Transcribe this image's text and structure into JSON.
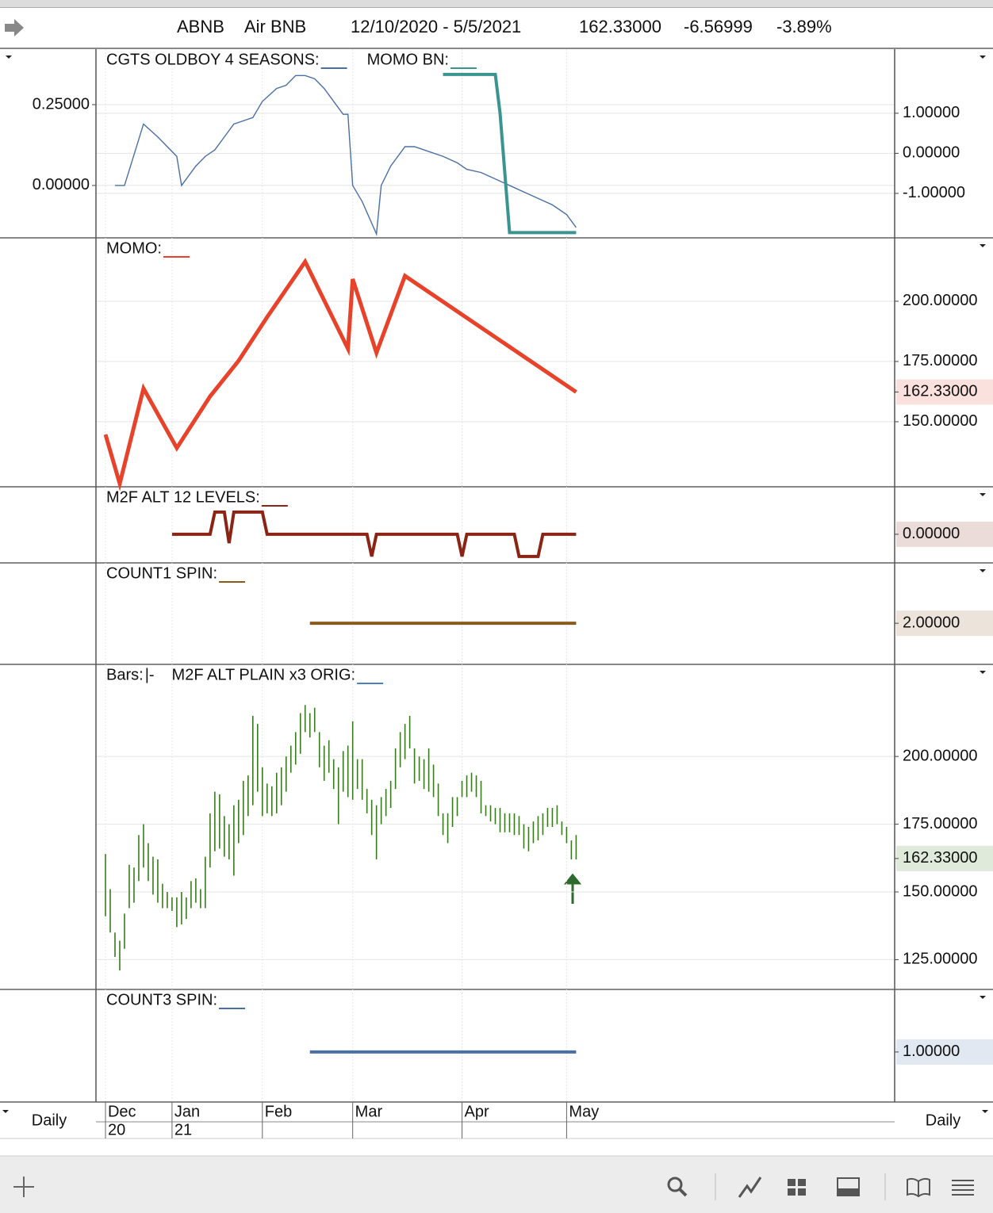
{
  "header": {
    "symbol": "ABNB",
    "name": "Air BNB",
    "range": "12/10/2020 - 5/5/2021",
    "last": "162.33000",
    "change": "-6.56999",
    "change_pct": "-3.89%"
  },
  "footer": {
    "period_left": "Daily",
    "period_right": "Daily"
  },
  "x_axis": {
    "xlim": [
      -2,
      166
    ],
    "xticks": [
      {
        "value": 0,
        "label": "Dec",
        "year": "20"
      },
      {
        "value": 14,
        "label": "Jan",
        "year": "21"
      },
      {
        "value": 33,
        "label": "Feb"
      },
      {
        "value": 52,
        "label": "Mar"
      },
      {
        "value": 75,
        "label": "Apr"
      },
      {
        "value": 97,
        "label": "May"
      }
    ]
  },
  "chart_data": [
    {
      "type": "line",
      "grid": true,
      "ylim": [
        -0.162,
        0.4216
      ],
      "yticks": [
        {
          "value": 0.25,
          "label": "0.25000"
        },
        {
          "value": 0,
          "label": "0.00000"
        }
      ],
      "y2lim": [
        -2.11,
        2.6
      ],
      "y2ticks": [
        {
          "value": 1,
          "label": "1.00000"
        },
        {
          "value": 0,
          "label": "0.00000"
        },
        {
          "value": -1,
          "label": "-1.00000"
        }
      ],
      "series": [
        {
          "name": "CGTS OLDBOY 4 SEASONS:",
          "color": "#4a6fa5",
          "line_width": 1.4,
          "x": [
            2,
            4,
            8,
            11,
            15,
            16,
            19,
            21,
            23,
            25,
            27,
            29,
            31,
            33,
            36,
            38,
            40,
            42,
            44,
            46,
            48,
            50,
            51,
            52,
            54,
            57,
            58,
            60,
            63,
            65,
            67,
            71,
            74,
            76,
            79,
            82,
            85,
            88,
            91,
            94,
            97,
            99
          ],
          "values": [
            0,
            0,
            0.19,
            0.15,
            0.09,
            0,
            0.06,
            0.09,
            0.11,
            0.15,
            0.19,
            0.2,
            0.21,
            0.26,
            0.3,
            0.31,
            0.34,
            0.34,
            0.33,
            0.3,
            0.26,
            0.22,
            0.22,
            0,
            -0.05,
            -0.15,
            0,
            0.06,
            0.12,
            0.12,
            0.11,
            0.09,
            0.07,
            0.05,
            0.04,
            0.02,
            0,
            -0.02,
            -0.04,
            -0.06,
            -0.09,
            -0.13
          ]
        },
        {
          "name": "MOMO BN:",
          "color": "#3a9490",
          "line_width": 4,
          "axis": "y2",
          "x": [
            71,
            82,
            83,
            85,
            99
          ],
          "values": [
            1.97,
            1.97,
            1.0,
            -1.98,
            -1.98
          ]
        }
      ]
    },
    {
      "type": "line",
      "grid": true,
      "ylim": [
        123,
        226.3
      ],
      "yticks": [
        {
          "value": 200,
          "label": "200.00000"
        },
        {
          "value": 175,
          "label": "175.00000"
        },
        {
          "value": 150,
          "label": "150.00000"
        }
      ],
      "last_value": {
        "value": 162.33,
        "label": "162.33000"
      },
      "series": [
        {
          "name": "MOMO:",
          "color": "#e8432a",
          "line_width": 5,
          "x": [
            0,
            3,
            8,
            15,
            22,
            28,
            34,
            42,
            51,
            52,
            57,
            63,
            99
          ],
          "values": [
            144.7,
            124.3,
            163.8,
            139.1,
            160.5,
            175.3,
            193.4,
            216.4,
            180.3,
            209.2,
            178.6,
            210.5,
            162.33
          ]
        }
      ]
    },
    {
      "type": "line",
      "grid": true,
      "ylim": [
        -1.29,
        2.14
      ],
      "last_value": {
        "value": 0,
        "label": "0.00000"
      },
      "series": [
        {
          "name": "M2F ALT 12 LEVELS:",
          "color": "#8b2414",
          "line_width": 4,
          "x": [
            14,
            22,
            23,
            25,
            26,
            27,
            33,
            34,
            55,
            56,
            57,
            74,
            75,
            76,
            86,
            87,
            91,
            92,
            99
          ],
          "values": [
            0,
            0,
            1,
            1,
            -0.4,
            1,
            1,
            0,
            0,
            -1,
            0,
            0,
            -1,
            0,
            0,
            -1,
            -1,
            0,
            0
          ]
        }
      ]
    },
    {
      "type": "line",
      "grid": true,
      "ylim": [
        1.19,
        3.19
      ],
      "last_value": {
        "value": 2,
        "label": "2.00000"
      },
      "series": [
        {
          "name": "COUNT1 SPIN:",
          "color": "#8a5a1c",
          "line_width": 4,
          "x": [
            43,
            99
          ],
          "values": [
            2,
            2
          ]
        }
      ]
    },
    {
      "type": "ohlc",
      "grid": true,
      "ylim": [
        114,
        234
      ],
      "yticks": [
        {
          "value": 200,
          "label": "200.00000"
        },
        {
          "value": 175,
          "label": "175.00000"
        },
        {
          "value": 150,
          "label": "150.00000"
        },
        {
          "value": 125,
          "label": "125.00000"
        }
      ],
      "last_value": {
        "value": 162.33,
        "label": "162.33000"
      },
      "series": [
        {
          "name": "Bars:",
          "symbol": "|-",
          "color": "#3a7a1f",
          "high": [
            164,
            151,
            135,
            132,
            142,
            160,
            159,
            171,
            175,
            168,
            163,
            162,
            153,
            150,
            148,
            148,
            150,
            148,
            154,
            155,
            151,
            163,
            179,
            187,
            186,
            178,
            175,
            182,
            184,
            191,
            193,
            215,
            212,
            196,
            190,
            189,
            194,
            196,
            200,
            204,
            209,
            216,
            219,
            216,
            218,
            209,
            204,
            206,
            199,
            196,
            202,
            204,
            213,
            199,
            199,
            188,
            184,
            182,
            185,
            188,
            191,
            203,
            209,
            212,
            215,
            203,
            200,
            199,
            203,
            197,
            190,
            179,
            179,
            185,
            185,
            191,
            193,
            194,
            193,
            191,
            182,
            182,
            181,
            181,
            179,
            179,
            179,
            178,
            175,
            174,
            176,
            178,
            179,
            181,
            181,
            182,
            176,
            174,
            169,
            171
          ],
          "low": [
            141,
            135,
            126,
            121,
            129,
            144,
            146,
            154,
            159,
            154,
            149,
            146,
            144,
            144,
            143,
            137,
            138,
            140,
            144,
            146,
            144,
            144,
            159,
            165,
            166,
            163,
            162,
            156,
            168,
            171,
            178,
            182,
            187,
            178,
            179,
            178,
            179,
            182,
            187,
            194,
            197,
            201,
            209,
            207,
            209,
            196,
            191,
            194,
            188,
            175,
            187,
            185,
            184,
            188,
            184,
            179,
            171,
            162,
            175,
            178,
            181,
            188,
            196,
            199,
            203,
            190,
            191,
            188,
            187,
            185,
            178,
            171,
            168,
            174,
            178,
            185,
            185,
            187,
            185,
            179,
            178,
            176,
            175,
            172,
            172,
            172,
            171,
            171,
            166,
            165,
            168,
            169,
            171,
            174,
            174,
            175,
            171,
            168,
            162,
            162
          ]
        },
        {
          "name": "M2F ALT PLAIN x3 ORIG:",
          "color": "#4a7fc0"
        }
      ]
    },
    {
      "type": "line",
      "grid": true,
      "ylim": [
        0,
        2.25
      ],
      "last_value": {
        "value": 1,
        "label": "1.00000"
      },
      "series": [
        {
          "name": "COUNT3 SPIN:",
          "color": "#4a6fa5",
          "line_width": 4,
          "x": [
            43,
            99
          ],
          "values": [
            1,
            1
          ]
        }
      ]
    }
  ]
}
